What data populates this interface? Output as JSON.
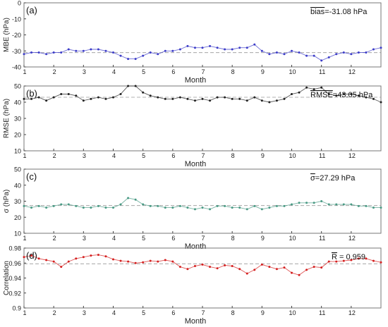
{
  "chart_data": [
    {
      "type": "scatter",
      "panel_label": "(a)",
      "ylabel": "MBE (hPa)",
      "xlabel": "Month",
      "xlim": [
        1,
        13
      ],
      "ylim": [
        -40,
        0
      ],
      "yticks": [
        -40,
        -30,
        -20,
        -10,
        0
      ],
      "xticks": [
        1,
        2,
        3,
        4,
        5,
        6,
        7,
        8,
        9,
        10,
        11,
        12
      ],
      "color": "#3d3dc8",
      "mean_line": -31.08,
      "annotation": {
        "over": "bias",
        "rest": "=-31.08 hPa"
      },
      "series": [
        {
          "x": [
            1.0,
            1.25,
            1.5,
            1.75,
            2.0,
            2.25,
            2.5,
            2.75,
            3.0,
            3.25,
            3.5,
            3.75,
            4.0,
            4.25,
            4.5,
            4.75,
            5.0,
            5.25,
            5.5,
            5.75,
            6.0,
            6.25,
            6.5,
            6.75,
            7.0,
            7.25,
            7.5,
            7.75,
            8.0,
            8.25,
            8.5,
            8.75,
            9.0,
            9.25,
            9.5,
            9.75,
            10.0,
            10.25,
            10.5,
            10.75,
            11.0,
            11.25,
            11.5,
            11.75,
            12.0,
            12.25,
            12.5,
            12.75,
            13.0
          ],
          "y": [
            -32,
            -31,
            -31,
            -32,
            -31,
            -31,
            -29,
            -30,
            -30,
            -29,
            -29,
            -30,
            -31,
            -33,
            -35,
            -35,
            -33,
            -31,
            -32,
            -30,
            -30,
            -29,
            -27,
            -28,
            -28,
            -27,
            -28,
            -29,
            -29,
            -28,
            -28,
            -26,
            -30,
            -32,
            -31,
            -32,
            -30,
            -31,
            -33,
            -33,
            -36,
            -34,
            -32,
            -31,
            -32,
            -31,
            -31,
            -29,
            -28
          ]
        }
      ]
    },
    {
      "type": "scatter",
      "panel_label": "(b)",
      "ylabel": "RMSE (hPa)",
      "xlabel": "Month",
      "xlim": [
        1,
        13
      ],
      "ylim": [
        10,
        50
      ],
      "yticks": [
        10,
        20,
        30,
        40,
        50
      ],
      "xticks": [
        1,
        2,
        3,
        4,
        5,
        6,
        7,
        8,
        9,
        10,
        11,
        12
      ],
      "color": "#222222",
      "mean_line": 43.05,
      "annotation": {
        "over": "RMSE",
        "rest": "=43.05 hPa"
      },
      "series": [
        {
          "x": [
            1.0,
            1.25,
            1.5,
            1.75,
            2.0,
            2.25,
            2.5,
            2.75,
            3.0,
            3.25,
            3.5,
            3.75,
            4.0,
            4.25,
            4.5,
            4.75,
            5.0,
            5.25,
            5.5,
            5.75,
            6.0,
            6.25,
            6.5,
            6.75,
            7.0,
            7.25,
            7.5,
            7.75,
            8.0,
            8.25,
            8.5,
            8.75,
            9.0,
            9.25,
            9.5,
            9.75,
            10.0,
            10.25,
            10.5,
            10.75,
            11.0,
            11.25,
            11.5,
            11.75,
            12.0,
            12.25,
            12.5,
            12.75,
            13.0
          ],
          "y": [
            42,
            42,
            43,
            41,
            43,
            45,
            45,
            44,
            41,
            42,
            43,
            42,
            43,
            45,
            50,
            50,
            46,
            44,
            43,
            42,
            42,
            43,
            42,
            41,
            42,
            41,
            43,
            43,
            42,
            42,
            41,
            43,
            41,
            40,
            41,
            42,
            45,
            46,
            49,
            48,
            49,
            45,
            44,
            45,
            45,
            44,
            43,
            42,
            40
          ]
        }
      ]
    },
    {
      "type": "scatter",
      "panel_label": "(c)",
      "ylabel": "σ (hPa)",
      "xlabel": "Month",
      "xlim": [
        1,
        13
      ],
      "ylim": [
        10,
        50
      ],
      "yticks": [
        10,
        20,
        30,
        40,
        50
      ],
      "xticks": [
        1,
        2,
        3,
        4,
        5,
        6,
        7,
        8,
        9,
        10,
        11,
        12
      ],
      "color": "#4a9a84",
      "mean_line": 27.29,
      "annotation": {
        "over": "σ",
        "rest": "=27.29 hPa"
      },
      "series": [
        {
          "x": [
            1.0,
            1.25,
            1.5,
            1.75,
            2.0,
            2.25,
            2.5,
            2.75,
            3.0,
            3.25,
            3.5,
            3.75,
            4.0,
            4.25,
            4.5,
            4.75,
            5.0,
            5.25,
            5.5,
            5.75,
            6.0,
            6.25,
            6.5,
            6.75,
            7.0,
            7.25,
            7.5,
            7.75,
            8.0,
            8.25,
            8.5,
            8.75,
            9.0,
            9.25,
            9.5,
            9.75,
            10.0,
            10.25,
            10.5,
            10.75,
            11.0,
            11.25,
            11.5,
            11.75,
            12.0,
            12.25,
            12.5,
            12.75,
            13.0
          ],
          "y": [
            27,
            26,
            27,
            26,
            27,
            28,
            28,
            27,
            26,
            26,
            27,
            26,
            26,
            28,
            32,
            31,
            28,
            27,
            27,
            26,
            26,
            27,
            26,
            25,
            26,
            25,
            27,
            27,
            26,
            26,
            25,
            27,
            25,
            26,
            27,
            27,
            28,
            29,
            29,
            29,
            30,
            28,
            28,
            28,
            28,
            27,
            27,
            26,
            26
          ]
        }
      ]
    },
    {
      "type": "scatter",
      "panel_label": "(d)",
      "ylabel": "Correlation",
      "xlabel": "Month",
      "xlim": [
        1,
        13
      ],
      "ylim": [
        0.9,
        0.98
      ],
      "yticks": [
        0.9,
        0.92,
        0.94,
        0.96,
        0.98
      ],
      "xticks": [
        1,
        2,
        3,
        4,
        5,
        6,
        7,
        8,
        9,
        10,
        11,
        12
      ],
      "color": "#d42020",
      "mean_line": 0.959,
      "annotation": {
        "over": "R",
        "rest": " = 0.959"
      },
      "series": [
        {
          "x": [
            1.0,
            1.25,
            1.5,
            1.75,
            2.0,
            2.25,
            2.5,
            2.75,
            3.0,
            3.25,
            3.5,
            3.75,
            4.0,
            4.25,
            4.5,
            4.75,
            5.0,
            5.25,
            5.5,
            5.75,
            6.0,
            6.25,
            6.5,
            6.75,
            7.0,
            7.25,
            7.5,
            7.75,
            8.0,
            8.25,
            8.5,
            8.75,
            9.0,
            9.25,
            9.5,
            9.75,
            10.0,
            10.25,
            10.5,
            10.75,
            11.0,
            11.25,
            11.5,
            11.75,
            12.0,
            12.25,
            12.5,
            12.75,
            13.0
          ],
          "y": [
            0.968,
            0.97,
            0.966,
            0.964,
            0.962,
            0.955,
            0.962,
            0.966,
            0.968,
            0.97,
            0.971,
            0.969,
            0.965,
            0.963,
            0.962,
            0.96,
            0.961,
            0.963,
            0.962,
            0.964,
            0.962,
            0.955,
            0.952,
            0.956,
            0.958,
            0.955,
            0.953,
            0.957,
            0.956,
            0.952,
            0.946,
            0.951,
            0.958,
            0.955,
            0.952,
            0.954,
            0.947,
            0.944,
            0.951,
            0.955,
            0.954,
            0.962,
            0.962,
            0.963,
            0.964,
            0.966,
            0.966,
            0.963,
            0.961
          ]
        }
      ]
    }
  ]
}
